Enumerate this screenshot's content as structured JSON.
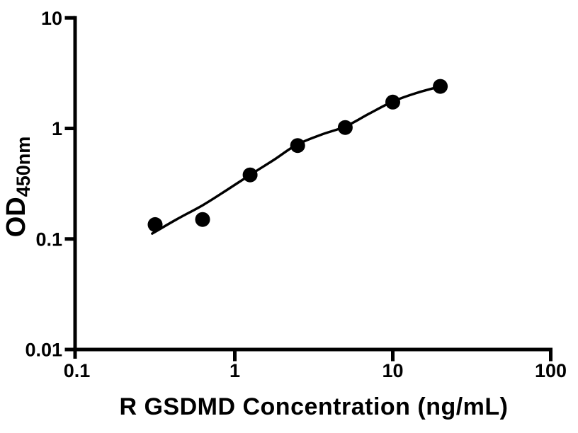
{
  "figure": {
    "background": "#ffffff",
    "ink": "#000000"
  },
  "chart_data": {
    "type": "scatter",
    "title": "",
    "xlabel": "R GSDMD Concentration (ng/mL)",
    "ylabel": "OD",
    "ylabel_subscript": "450nm",
    "xscale": "log",
    "yscale": "log",
    "xlim": [
      0.1,
      100
    ],
    "ylim": [
      0.01,
      10
    ],
    "grid": false,
    "legend": "none",
    "x_ticks": [
      {
        "value": 0.1,
        "label": "0.1"
      },
      {
        "value": 1,
        "label": "1"
      },
      {
        "value": 10,
        "label": "10"
      },
      {
        "value": 100,
        "label": "100"
      }
    ],
    "y_ticks": [
      {
        "value": 0.01,
        "label": "0.01"
      },
      {
        "value": 0.1,
        "label": "0.1"
      },
      {
        "value": 1,
        "label": "1"
      },
      {
        "value": 10,
        "label": "10"
      }
    ],
    "series": [
      {
        "name": "standard-curve-data-points",
        "marker": "circle",
        "color": "#000000",
        "x": [
          0.313,
          0.625,
          1.25,
          2.5,
          5,
          10,
          20
        ],
        "y": [
          0.135,
          0.15,
          0.38,
          0.7,
          1.02,
          1.73,
          2.4
        ]
      }
    ],
    "fit_curve": {
      "name": "fitted-standard-curve",
      "color": "#000000",
      "points": [
        [
          0.3,
          0.112
        ],
        [
          0.43,
          0.151
        ],
        [
          0.63,
          0.203
        ],
        [
          0.89,
          0.277
        ],
        [
          1.25,
          0.38
        ],
        [
          1.77,
          0.52
        ],
        [
          2.46,
          0.71
        ],
        [
          3.5,
          0.875
        ],
        [
          5.0,
          1.04
        ],
        [
          7.1,
          1.36
        ],
        [
          10,
          1.75
        ],
        [
          14.1,
          2.09
        ],
        [
          20,
          2.4
        ]
      ]
    }
  }
}
